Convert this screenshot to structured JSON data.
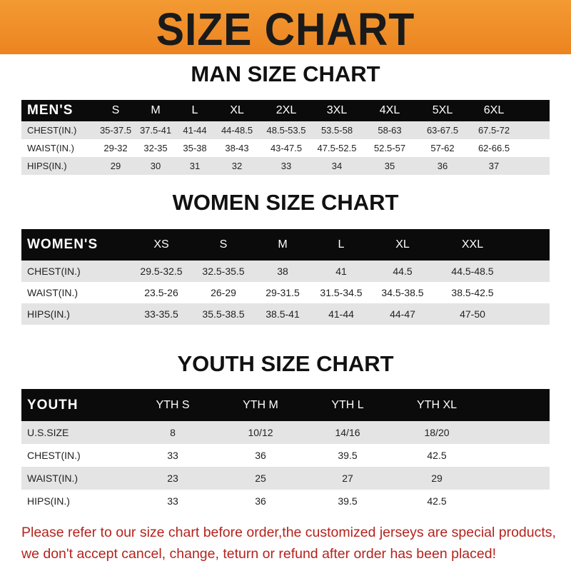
{
  "banner": {
    "title": "SIZE CHART",
    "color": "#ee8a26"
  },
  "men": {
    "title": "MAN SIZE CHART",
    "header_label": "MEN'S",
    "sizes": [
      "S",
      "M",
      "L",
      "XL",
      "2XL",
      "3XL",
      "4XL",
      "5XL",
      "6XL"
    ],
    "rows": [
      {
        "label": "CHEST(IN.)",
        "values": [
          "35-37.5",
          "37.5-41",
          "41-44",
          "44-48.5",
          "48.5-53.5",
          "53.5-58",
          "58-63",
          "63-67.5",
          "67.5-72"
        ]
      },
      {
        "label": "WAIST(IN.)",
        "values": [
          "29-32",
          "32-35",
          "35-38",
          "38-43",
          "43-47.5",
          "47.5-52.5",
          "52.5-57",
          "57-62",
          "62-66.5"
        ]
      },
      {
        "label": "HIPS(IN.)",
        "values": [
          "29",
          "30",
          "31",
          "32",
          "33",
          "34",
          "35",
          "36",
          "37"
        ]
      }
    ]
  },
  "women": {
    "title": "WOMEN SIZE CHART",
    "header_label": "WOMEN'S",
    "sizes": [
      "XS",
      "S",
      "M",
      "L",
      "XL",
      "XXL"
    ],
    "rows": [
      {
        "label": "CHEST(IN.)",
        "values": [
          "29.5-32.5",
          "32.5-35.5",
          "38",
          "41",
          "44.5",
          "44.5-48.5"
        ]
      },
      {
        "label": "WAIST(IN.)",
        "values": [
          "23.5-26",
          "26-29",
          "29-31.5",
          "31.5-34.5",
          "34.5-38.5",
          "38.5-42.5"
        ]
      },
      {
        "label": "HIPS(IN.)",
        "values": [
          "33-35.5",
          "35.5-38.5",
          "38.5-41",
          "41-44",
          "44-47",
          "47-50"
        ]
      }
    ]
  },
  "youth": {
    "title": "YOUTH SIZE CHART",
    "header_label": "YOUTH",
    "sizes": [
      "YTH S",
      "YTH M",
      "YTH L",
      "YTH XL"
    ],
    "rows": [
      {
        "label": "U.S.SIZE",
        "values": [
          "8",
          "10/12",
          "14/16",
          "18/20"
        ]
      },
      {
        "label": "CHEST(IN.)",
        "values": [
          "33",
          "36",
          "39.5",
          "42.5"
        ]
      },
      {
        "label": "WAIST(IN.)",
        "values": [
          "23",
          "25",
          "27",
          "29"
        ]
      },
      {
        "label": "HIPS(IN.)",
        "values": [
          "33",
          "36",
          "39.5",
          "42.5"
        ]
      }
    ]
  },
  "notice": {
    "line1": "Please refer to our size chart before order,the customized jerseys are special products,",
    "line2": "we don't accept cancel, change, teturn or refund after order has been placed!",
    "color": "#b5231d"
  }
}
